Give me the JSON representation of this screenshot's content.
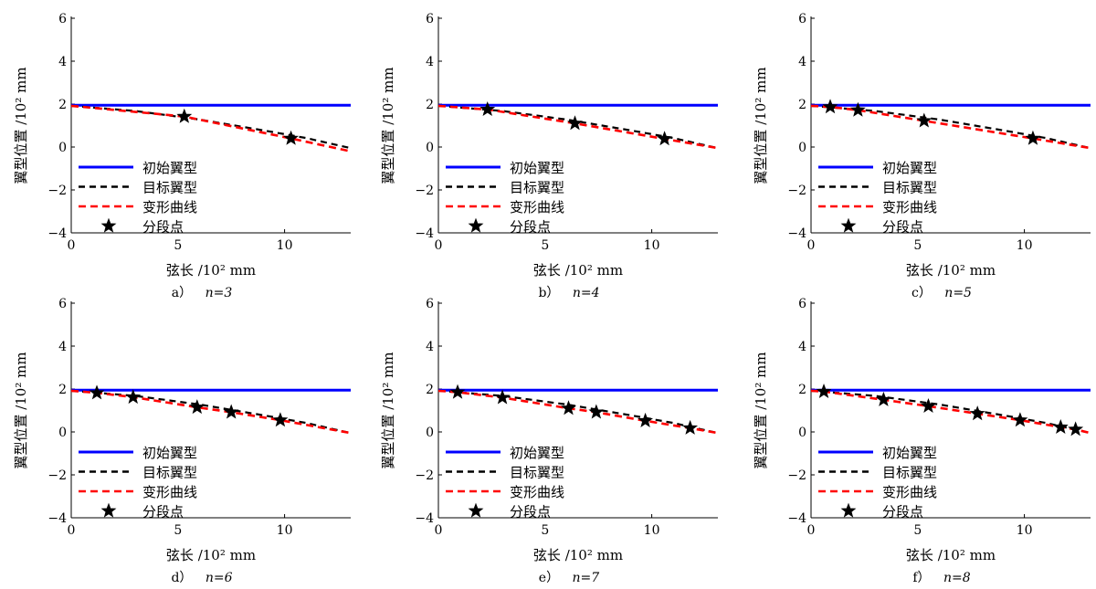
{
  "legend": {
    "initial": "初始翼型",
    "target": "目标翼型",
    "deformed": "变形曲线",
    "segment_points": "分段点"
  },
  "colors": {
    "initial": "#0000ff",
    "target": "#000000",
    "deformed": "#ff0000",
    "segment_points": "#000000",
    "axes": "#000000"
  },
  "axes": {
    "xlabel": "弦长 /10² mm",
    "ylabel": "翼型位置 /10² mm",
    "xticks": [
      "0",
      "5",
      "10"
    ],
    "yticks": [
      "6",
      "4",
      "2",
      "0",
      "−2",
      "−4"
    ]
  },
  "chart_data": [
    {
      "type": "line",
      "caption_prefix": "a）",
      "caption_n": "n=3",
      "xlim": [
        0,
        13.1
      ],
      "ylim": [
        -4,
        6
      ],
      "grid": false,
      "legend_position": "lower-left",
      "series": [
        {
          "name": "初始翼型",
          "style": "solid",
          "x": [
            0,
            13.1
          ],
          "y": [
            1.95,
            1.95
          ]
        },
        {
          "name": "目标翼型",
          "style": "dashed",
          "x": [
            0,
            3,
            6,
            9,
            11,
            13.1
          ],
          "y": [
            1.92,
            1.68,
            1.28,
            0.78,
            0.42,
            -0.05
          ]
        },
        {
          "name": "变形曲线",
          "style": "dashed",
          "x": [
            0,
            5.3,
            10.3,
            13.1
          ],
          "y": [
            1.92,
            1.42,
            0.4,
            -0.2
          ]
        }
      ],
      "segment_points": {
        "x": [
          5.3,
          10.3
        ],
        "y": [
          1.42,
          0.4
        ]
      }
    },
    {
      "type": "line",
      "caption_prefix": "b）",
      "caption_n": "n=4",
      "xlim": [
        0,
        13.1
      ],
      "ylim": [
        -4,
        6
      ],
      "grid": false,
      "legend_position": "lower-left",
      "series": [
        {
          "name": "初始翼型",
          "style": "solid",
          "x": [
            0,
            13.1
          ],
          "y": [
            1.95,
            1.95
          ]
        },
        {
          "name": "目标翼型",
          "style": "dashed",
          "x": [
            0,
            3,
            6,
            9,
            11,
            13.1
          ],
          "y": [
            1.92,
            1.68,
            1.28,
            0.78,
            0.42,
            -0.05
          ]
        },
        {
          "name": "变形曲线",
          "style": "dashed",
          "x": [
            0,
            2.3,
            6.4,
            10.6,
            13.1
          ],
          "y": [
            1.92,
            1.75,
            1.1,
            0.38,
            -0.05
          ]
        }
      ],
      "segment_points": {
        "x": [
          2.3,
          6.4,
          10.6
        ],
        "y": [
          1.75,
          1.1,
          0.38
        ]
      }
    },
    {
      "type": "line",
      "caption_prefix": "c）",
      "caption_n": "n=5",
      "xlim": [
        0,
        13.1
      ],
      "ylim": [
        -4,
        6
      ],
      "grid": false,
      "legend_position": "lower-left",
      "series": [
        {
          "name": "初始翼型",
          "style": "solid",
          "x": [
            0,
            13.1
          ],
          "y": [
            1.95,
            1.95
          ]
        },
        {
          "name": "目标翼型",
          "style": "dashed",
          "x": [
            0,
            3,
            6,
            9,
            11,
            13.1
          ],
          "y": [
            1.92,
            1.68,
            1.28,
            0.78,
            0.42,
            -0.05
          ]
        },
        {
          "name": "变形曲线",
          "style": "dashed",
          "x": [
            0,
            0.9,
            2.2,
            5.3,
            10.4,
            13.1
          ],
          "y": [
            1.92,
            1.87,
            1.72,
            1.22,
            0.4,
            -0.05
          ]
        }
      ],
      "segment_points": {
        "x": [
          0.9,
          2.2,
          5.3,
          10.4
        ],
        "y": [
          1.87,
          1.72,
          1.22,
          0.4
        ]
      }
    },
    {
      "type": "line",
      "caption_prefix": "d）",
      "caption_n": "n=6",
      "xlim": [
        0,
        13.1
      ],
      "ylim": [
        -4,
        6
      ],
      "grid": false,
      "legend_position": "lower-left",
      "series": [
        {
          "name": "初始翼型",
          "style": "solid",
          "x": [
            0,
            13.1
          ],
          "y": [
            1.95,
            1.95
          ]
        },
        {
          "name": "目标翼型",
          "style": "dashed",
          "x": [
            0,
            3,
            6,
            9,
            11,
            13.1
          ],
          "y": [
            1.92,
            1.68,
            1.28,
            0.78,
            0.42,
            -0.05
          ]
        },
        {
          "name": "变形曲线",
          "style": "dashed",
          "x": [
            0,
            1.2,
            2.9,
            5.9,
            7.5,
            9.8,
            13.1
          ],
          "y": [
            1.92,
            1.82,
            1.62,
            1.15,
            0.92,
            0.55,
            -0.05
          ]
        }
      ],
      "segment_points": {
        "x": [
          1.2,
          2.9,
          5.9,
          7.5,
          9.8
        ],
        "y": [
          1.82,
          1.62,
          1.15,
          0.92,
          0.55
        ]
      }
    },
    {
      "type": "line",
      "caption_prefix": "e）",
      "caption_n": "n=7",
      "xlim": [
        0,
        13.1
      ],
      "ylim": [
        -4,
        6
      ],
      "grid": false,
      "legend_position": "lower-left",
      "series": [
        {
          "name": "初始翼型",
          "style": "solid",
          "x": [
            0,
            13.1
          ],
          "y": [
            1.95,
            1.95
          ]
        },
        {
          "name": "目标翼型",
          "style": "dashed",
          "x": [
            0,
            3,
            6,
            9,
            11,
            13.1
          ],
          "y": [
            1.92,
            1.68,
            1.28,
            0.78,
            0.42,
            -0.05
          ]
        },
        {
          "name": "变形曲线",
          "style": "dashed",
          "x": [
            0,
            0.9,
            3.0,
            6.1,
            7.4,
            9.7,
            11.8,
            13.1
          ],
          "y": [
            1.92,
            1.85,
            1.6,
            1.1,
            0.92,
            0.52,
            0.18,
            -0.05
          ]
        }
      ],
      "segment_points": {
        "x": [
          0.9,
          3.0,
          6.1,
          7.4,
          9.7,
          11.8
        ],
        "y": [
          1.85,
          1.6,
          1.1,
          0.92,
          0.52,
          0.18
        ]
      }
    },
    {
      "type": "line",
      "caption_prefix": "f）",
      "caption_n": "n=8",
      "xlim": [
        0,
        13.1
      ],
      "ylim": [
        -4,
        6
      ],
      "grid": false,
      "legend_position": "lower-left",
      "series": [
        {
          "name": "初始翼型",
          "style": "solid",
          "x": [
            0,
            13.1
          ],
          "y": [
            1.95,
            1.95
          ]
        },
        {
          "name": "目标翼型",
          "style": "dashed",
          "x": [
            0,
            3,
            6,
            9,
            11,
            13.1
          ],
          "y": [
            1.92,
            1.68,
            1.28,
            0.78,
            0.42,
            -0.05
          ]
        },
        {
          "name": "变形曲线",
          "style": "dashed",
          "x": [
            0,
            0.6,
            3.4,
            5.5,
            7.8,
            9.8,
            11.7,
            12.4,
            13.1
          ],
          "y": [
            1.92,
            1.88,
            1.5,
            1.2,
            0.85,
            0.55,
            0.22,
            0.12,
            -0.05
          ]
        }
      ],
      "segment_points": {
        "x": [
          0.6,
          3.4,
          5.5,
          7.8,
          9.8,
          11.7,
          12.4
        ],
        "y": [
          1.88,
          1.5,
          1.2,
          0.85,
          0.55,
          0.22,
          0.12
        ]
      }
    }
  ]
}
